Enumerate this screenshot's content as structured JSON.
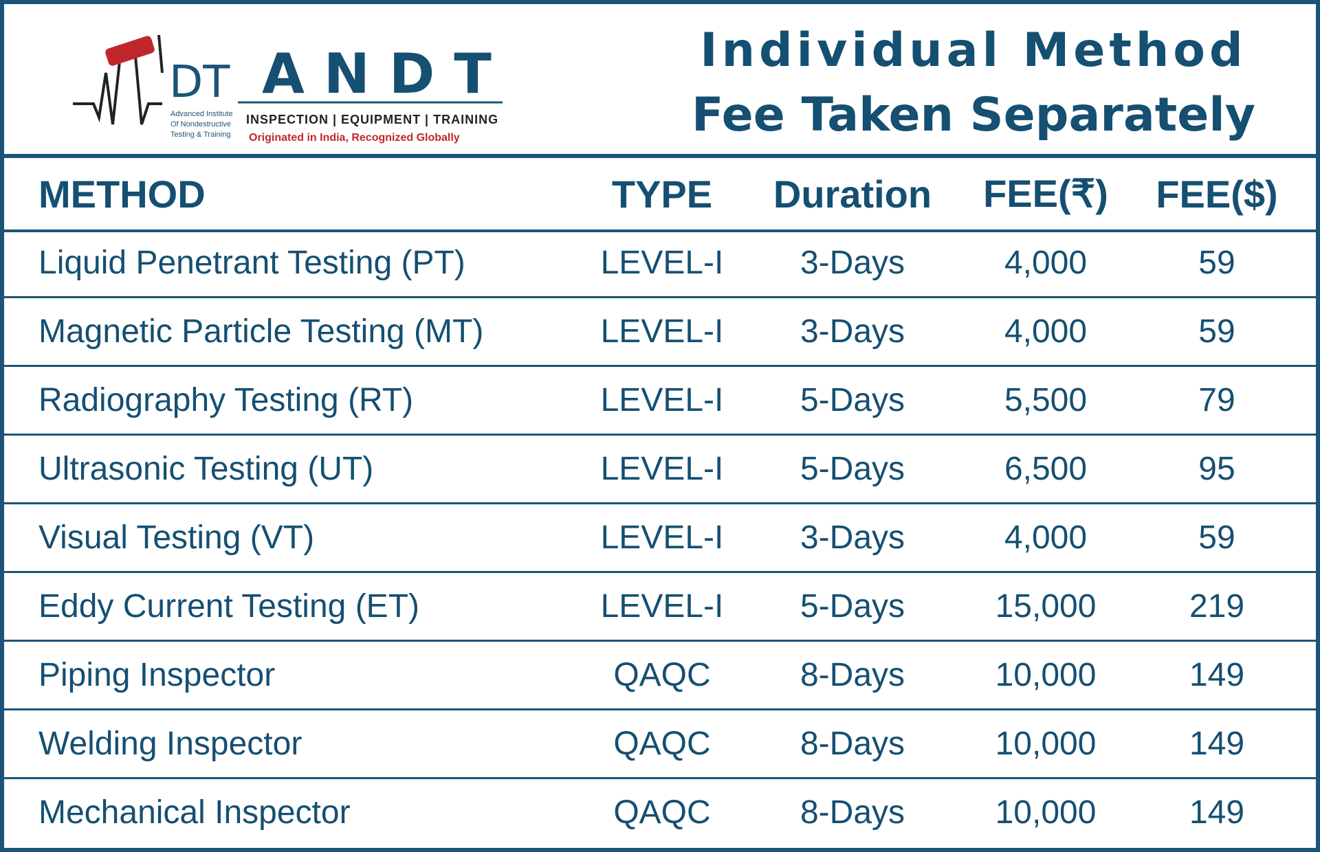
{
  "logo": {
    "glyph": "DT",
    "brand": "ANDT",
    "tagline": "INSPECTION | EQUIPMENT | TRAINING",
    "motto": "Originated in India, Recognized Globally",
    "institute": [
      "Advanced Institute",
      "Of Nondestructive",
      "Testing & Training"
    ]
  },
  "title": [
    "Individual Method",
    "Fee Taken Separately"
  ],
  "table": {
    "header": [
      "METHOD",
      "TYPE",
      "Duration",
      "FEE(₹)",
      "FEE($)"
    ],
    "rows": [
      [
        "Liquid Penetrant Testing (PT)",
        "LEVEL-I",
        "3-Days",
        "4,000",
        "59"
      ],
      [
        "Magnetic Particle Testing (MT)",
        "LEVEL-I",
        "3-Days",
        "4,000",
        "59"
      ],
      [
        "Radiography Testing (RT)",
        "LEVEL-I",
        "5-Days",
        "5,500",
        "79"
      ],
      [
        "Ultrasonic Testing (UT)",
        "LEVEL-I",
        "5-Days",
        "6,500",
        "95"
      ],
      [
        "Visual Testing (VT)",
        "LEVEL-I",
        "3-Days",
        "4,000",
        "59"
      ],
      [
        "Eddy Current Testing (ET)",
        "LEVEL-I",
        "5-Days",
        "15,000",
        "219"
      ],
      [
        "Piping Inspector",
        "QAQC",
        "8-Days",
        "10,000",
        "149"
      ],
      [
        "Welding Inspector",
        "QAQC",
        "8-Days",
        "10,000",
        "149"
      ],
      [
        "Mechanical Inspector",
        "QAQC",
        "8-Days",
        "10,000",
        "149"
      ]
    ]
  }
}
